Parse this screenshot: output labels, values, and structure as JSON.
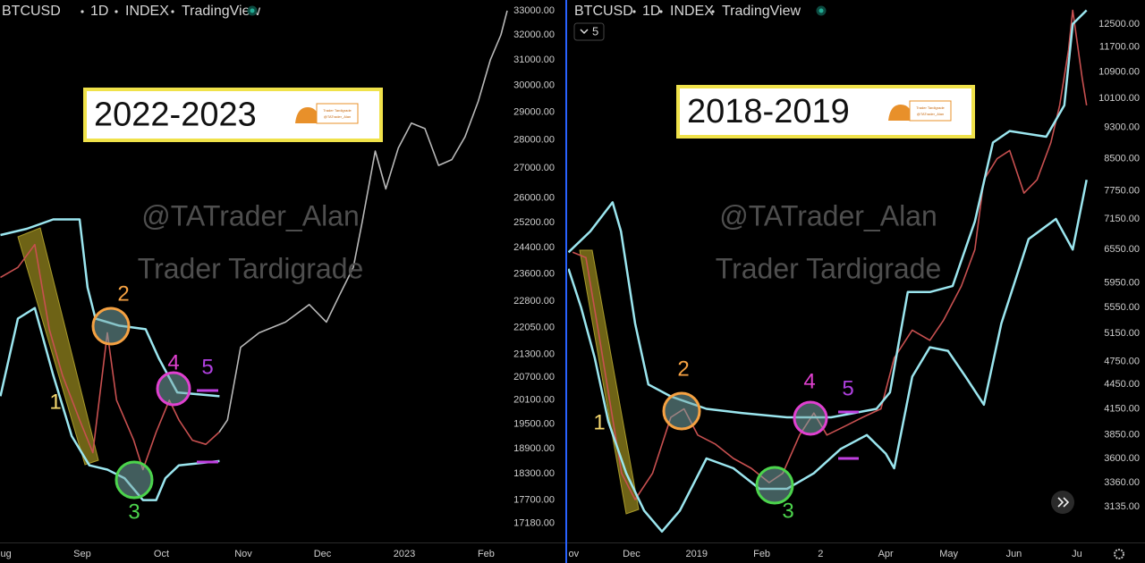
{
  "chart_data": [
    {
      "type": "line",
      "header": [
        "BTCUSD",
        "1D",
        "INDEX",
        "TradingView"
      ],
      "period_label": "2022-2023",
      "watermarks": [
        "@TATrader_Alan",
        "Trader Tardigrade"
      ],
      "annotations": [
        "1",
        "2",
        "3",
        "4",
        "5"
      ],
      "log_scale": true,
      "xlim": [
        0,
        193
      ],
      "ylim": [
        16770,
        33450
      ],
      "xticks": [
        {
          "value": 0,
          "label": "ug"
        },
        {
          "value": 31,
          "label": "Sep"
        },
        {
          "value": 61,
          "label": "Oct"
        },
        {
          "value": 92,
          "label": "Nov"
        },
        {
          "value": 122,
          "label": "Dec"
        },
        {
          "value": 153,
          "label": "2023"
        },
        {
          "value": 184,
          "label": "Feb"
        }
      ],
      "yticks": [
        {
          "value": 33000,
          "label": "33000.00"
        },
        {
          "value": 32000,
          "label": "32000.00"
        },
        {
          "value": 31000,
          "label": "31000.00"
        },
        {
          "value": 30000,
          "label": "30000.00"
        },
        {
          "value": 29000,
          "label": "29000.00"
        },
        {
          "value": 28000,
          "label": "28000.00"
        },
        {
          "value": 27000,
          "label": "27000.00"
        },
        {
          "value": 26000,
          "label": "26000.00"
        },
        {
          "value": 25200,
          "label": "25200.00"
        },
        {
          "value": 24400,
          "label": "24400.00"
        },
        {
          "value": 23600,
          "label": "23600.00"
        },
        {
          "value": 22800,
          "label": "22800.00"
        },
        {
          "value": 22050,
          "label": "22050.00"
        },
        {
          "value": 21300,
          "label": "21300.00"
        },
        {
          "value": 20700,
          "label": "20700.00"
        },
        {
          "value": 20100,
          "label": "20100.00"
        },
        {
          "value": 19500,
          "label": "19500.00"
        },
        {
          "value": 18900,
          "label": "18900.00"
        },
        {
          "value": 18300,
          "label": "18300.00"
        },
        {
          "value": 17700,
          "label": "17700.00"
        },
        {
          "value": 17180,
          "label": "17180.00"
        }
      ],
      "series": [
        {
          "color": "#c85050",
          "width": 1.6,
          "x": [
            0,
            6.6,
            13,
            18.5,
            23.5,
            30,
            35,
            40.5,
            44,
            50.5,
            54,
            59,
            64,
            67.6,
            72.7,
            77.8,
            82.9
          ],
          "values": [
            23500,
            23800,
            24500,
            22000,
            20750,
            19600,
            18800,
            21900,
            20100,
            19100,
            18400,
            19300,
            20100,
            19600,
            19100,
            19000,
            19300
          ]
        },
        {
          "color": "#b8b8b8",
          "width": 1.6,
          "x": [
            82.9,
            86,
            91,
            98,
            108,
            117,
            123.5,
            128.6,
            133.7,
            137,
            142,
            146,
            150.7,
            155.7,
            160.8,
            166,
            171,
            176,
            181,
            185.6,
            189.6,
            192
          ],
          "values": [
            19300,
            19600,
            21500,
            21900,
            22200,
            22700,
            22200,
            23000,
            23800,
            25200,
            27600,
            26300,
            27700,
            28600,
            28400,
            27100,
            27300,
            28100,
            29400,
            31000,
            32000,
            33000
          ]
        },
        {
          "color": "#9be6ef",
          "width": 2.5,
          "x": [
            0,
            10,
            20,
            30,
            33,
            36,
            45,
            55,
            60,
            67,
            83
          ],
          "values": [
            24800,
            25000,
            25300,
            25300,
            23200,
            22300,
            22100,
            22000,
            21200,
            20300,
            20200
          ]
        },
        {
          "color": "#9be6ef",
          "width": 2.5,
          "x": [
            0,
            6.6,
            13,
            20,
            27,
            33.7,
            40.5,
            47,
            54,
            59,
            62.5,
            67.6,
            83
          ],
          "values": [
            20200,
            22300,
            22600,
            20750,
            19200,
            18500,
            18400,
            18200,
            17700,
            17700,
            18200,
            18500,
            18600
          ]
        }
      ]
    },
    {
      "type": "line",
      "header": [
        "BTCUSD",
        "1D",
        "INDEX",
        "TradingView"
      ],
      "period_label": "2018-2019",
      "interval_button": "5",
      "watermarks": [
        "@TATrader_Alan",
        "Trader Tardigrade"
      ],
      "annotations": [
        "1",
        "2",
        "3",
        "4",
        "5"
      ],
      "log_scale": true,
      "xlim": [
        0,
        248
      ],
      "ylim": [
        2830,
        13390
      ],
      "xticks": [
        {
          "value": 0,
          "label": "ov"
        },
        {
          "value": 30,
          "label": "Dec"
        },
        {
          "value": 61,
          "label": "2019"
        },
        {
          "value": 92,
          "label": "Feb"
        },
        {
          "value": 120,
          "label": "2"
        },
        {
          "value": 151,
          "label": "Apr"
        },
        {
          "value": 181,
          "label": "May"
        },
        {
          "value": 212,
          "label": "Jun"
        },
        {
          "value": 242,
          "label": "Ju"
        }
      ],
      "yticks": [
        {
          "value": 12500,
          "label": "12500.00"
        },
        {
          "value": 11700,
          "label": "11700.00"
        },
        {
          "value": 10900,
          "label": "10900.00"
        },
        {
          "value": 10100,
          "label": "10100.00"
        },
        {
          "value": 9300,
          "label": "9300.00"
        },
        {
          "value": 8500,
          "label": "8500.00"
        },
        {
          "value": 7750,
          "label": "7750.00"
        },
        {
          "value": 7150,
          "label": "7150.00"
        },
        {
          "value": 6550,
          "label": "6550.00"
        },
        {
          "value": 5950,
          "label": "5950.00"
        },
        {
          "value": 5550,
          "label": "5550.00"
        },
        {
          "value": 5150,
          "label": "5150.00"
        },
        {
          "value": 4750,
          "label": "4750.00"
        },
        {
          "value": 4450,
          "label": "4450.00"
        },
        {
          "value": 4150,
          "label": "4150.00"
        },
        {
          "value": 3850,
          "label": "3850.00"
        },
        {
          "value": 3600,
          "label": "3600.00"
        },
        {
          "value": 3360,
          "label": "3360.00"
        },
        {
          "value": 3135,
          "label": "3135.00"
        }
      ],
      "series": [
        {
          "color": "#c85050",
          "width": 1.6,
          "x": [
            2,
            8.3,
            14.7,
            19,
            25.3,
            31.7,
            40,
            48.7,
            55,
            61.5,
            70,
            78.5,
            87,
            95.5,
            102,
            110,
            116.8,
            123,
            131.7,
            140,
            148.7,
            155,
            163.6,
            172,
            178.5,
            187,
            193.4,
            197.7,
            204,
            210,
            216.8,
            223,
            229.6,
            233.8,
            238,
            240,
            244.5,
            246.6
          ],
          "values": [
            6500,
            6400,
            5100,
            4350,
            3450,
            3200,
            3450,
            4050,
            4150,
            3850,
            3750,
            3600,
            3500,
            3360,
            3450,
            3850,
            4100,
            3850,
            3950,
            4050,
            4150,
            4800,
            5200,
            5050,
            5350,
            5900,
            6550,
            8000,
            8500,
            8700,
            7700,
            8000,
            8900,
            9900,
            11600,
            13000,
            10700,
            9900
          ]
        },
        {
          "color": "#9be6ef",
          "width": 2.5,
          "x": [
            0,
            10.4,
            21,
            25,
            31.7,
            38,
            48.7,
            65.7,
            82.8,
            104,
            125,
            146.6,
            153,
            161.5,
            172,
            182.8,
            193.4,
            202,
            210,
            227.4,
            236,
            240,
            246.6
          ],
          "values": [
            6500,
            6900,
            7500,
            6900,
            5300,
            4450,
            4300,
            4150,
            4100,
            4050,
            4050,
            4150,
            4350,
            5800,
            5800,
            5900,
            7100,
            8900,
            9200,
            9050,
            9900,
            12500,
            13000
          ]
        },
        {
          "color": "#9be6ef",
          "width": 2.5,
          "x": [
            0,
            6,
            12.5,
            19,
            27.5,
            36,
            44.5,
            53,
            65.7,
            78.5,
            91,
            104,
            116.8,
            129.6,
            142,
            151,
            155,
            163.6,
            172,
            180.6,
            189,
            197.7,
            206,
            219,
            232,
            240,
            246.6
          ],
          "values": [
            6200,
            5550,
            4800,
            4000,
            3450,
            3100,
            2920,
            3100,
            3600,
            3500,
            3300,
            3300,
            3450,
            3700,
            3850,
            3650,
            3500,
            4550,
            4950,
            4900,
            4550,
            4200,
            5300,
            6750,
            7150,
            6550,
            8000
          ]
        }
      ]
    }
  ]
}
